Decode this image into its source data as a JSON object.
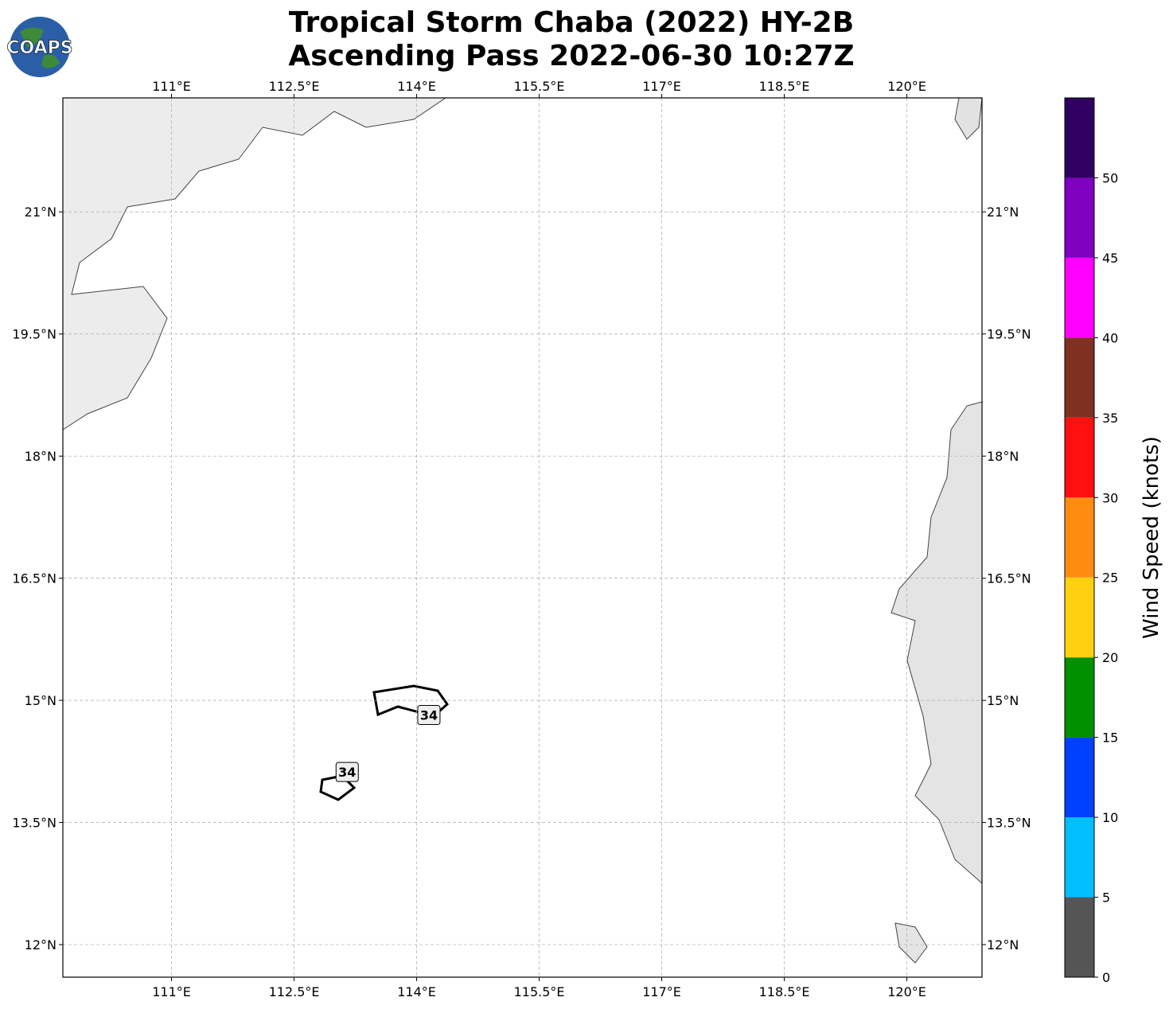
{
  "map": {
    "title": [
      "Tropical Storm Chaba (2022) HY-2B",
      "Ascending Pass 2022-06-30 10:27Z"
    ],
    "logo": "COAPS",
    "xlim": [
      109.67,
      120.92
    ],
    "ylim": [
      11.6,
      22.4
    ],
    "xticks": [
      {
        "value": 111,
        "label": "111°E"
      },
      {
        "value": 112.5,
        "label": "112.5°E"
      },
      {
        "value": 114,
        "label": "114°E"
      },
      {
        "value": 115.5,
        "label": "115.5°E"
      },
      {
        "value": 117,
        "label": "117°E"
      },
      {
        "value": 118.5,
        "label": "118.5°E"
      },
      {
        "value": 120,
        "label": "120°E"
      }
    ],
    "yticks": [
      {
        "value": 12,
        "label": "12°N"
      },
      {
        "value": 13.5,
        "label": "13.5°N"
      },
      {
        "value": 15,
        "label": "15°N"
      },
      {
        "value": 16.5,
        "label": "16.5°N"
      },
      {
        "value": 18,
        "label": "18°N"
      },
      {
        "value": 19.5,
        "label": "19.5°N"
      },
      {
        "value": 21,
        "label": "21°N"
      }
    ],
    "grid": true,
    "contour_labels": [
      {
        "text": "34",
        "lon": 114.15,
        "lat": 14.82
      },
      {
        "text": "34",
        "lon": 113.15,
        "lat": 14.12
      }
    ],
    "colorbar": {
      "label": "Wind Speed (knots)",
      "lim": [
        0,
        55
      ],
      "bounds": [
        0,
        5,
        10,
        15,
        20,
        25,
        30,
        35,
        40,
        45,
        50,
        55
      ],
      "colors": [
        "#555555",
        "#00bfff",
        "#0040ff",
        "#009000",
        "#ffd010",
        "#ff8c10",
        "#ff1010",
        "#803020",
        "#ff00ff",
        "#8000c0",
        "#300060"
      ],
      "ticks": [
        0,
        5,
        10,
        15,
        20,
        25,
        30,
        35,
        40,
        45,
        50
      ]
    }
  }
}
